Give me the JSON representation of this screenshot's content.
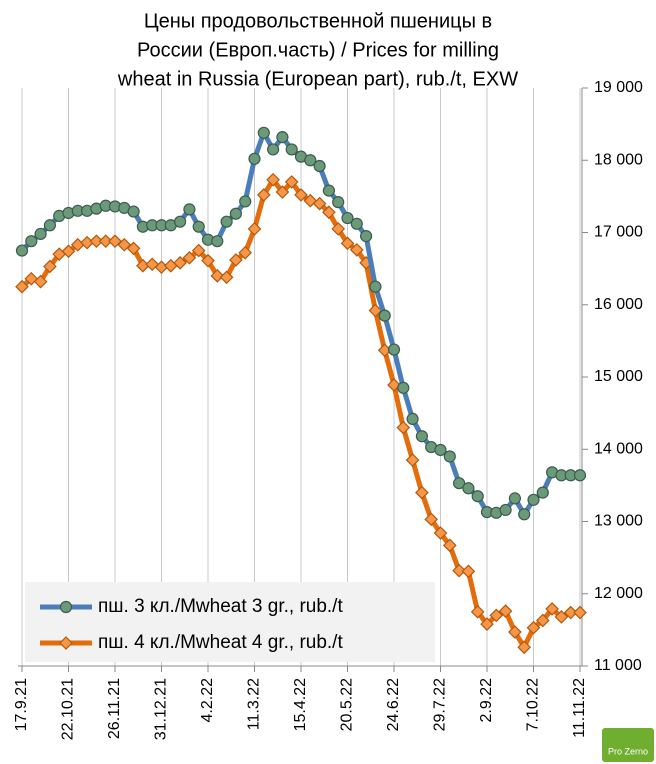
{
  "chart_data": {
    "type": "line",
    "title": [
      "Цены продовольственной пшеницы в",
      "России (Европ.часть) / Prices for milling",
      "wheat in Russia (European part), rub./t, EXW"
    ],
    "categories": [
      "17.9.21",
      null,
      null,
      null,
      null,
      "22.10.21",
      null,
      null,
      null,
      null,
      "26.11.21",
      null,
      null,
      null,
      null,
      "31.12.21",
      null,
      null,
      null,
      null,
      "4.2.22",
      null,
      null,
      null,
      null,
      "11.3.22",
      null,
      null,
      null,
      null,
      "15.4.22",
      null,
      null,
      null,
      null,
      "20.5.22",
      null,
      null,
      null,
      null,
      "24.6.22",
      null,
      null,
      null,
      null,
      "29.7.22",
      null,
      null,
      null,
      null,
      "2.9.22",
      null,
      null,
      null,
      null,
      "7.10.22",
      null,
      null,
      null,
      null,
      "11.11.22"
    ],
    "series": [
      {
        "name": "пш. 3 кл./Mwheat 3 gr., rub./t",
        "color": "#4a7ebb",
        "marker_color": "#6b9a78",
        "marker": "circle",
        "values": [
          16750,
          16880,
          16980,
          17100,
          17230,
          17270,
          17300,
          17300,
          17330,
          17370,
          17360,
          17340,
          17290,
          17080,
          17100,
          17100,
          17100,
          17150,
          17320,
          17080,
          16900,
          16880,
          17150,
          17260,
          17430,
          18020,
          18380,
          18150,
          18320,
          18150,
          18050,
          18000,
          17920,
          17580,
          17420,
          17200,
          17120,
          16950,
          16250,
          15850,
          15380,
          14850,
          14420,
          14180,
          14030,
          13990,
          13900,
          13530,
          13460,
          13350,
          13130,
          13120,
          13160,
          13320,
          13100,
          13300,
          13400,
          13680,
          13640,
          13640,
          13640
        ]
      },
      {
        "name": "пш. 4 кл./Mwheat 4 gr., rub./t",
        "color": "#e46c0a",
        "marker_color": "#f79646",
        "marker": "diamond",
        "values": [
          16250,
          16360,
          16320,
          16530,
          16700,
          16740,
          16830,
          16860,
          16880,
          16880,
          16880,
          16830,
          16780,
          16540,
          16560,
          16520,
          16540,
          16580,
          16650,
          16750,
          16610,
          16400,
          16380,
          16620,
          16720,
          17050,
          17520,
          17730,
          17560,
          17700,
          17520,
          17440,
          17400,
          17280,
          17050,
          16850,
          16760,
          16580,
          15920,
          15370,
          14890,
          14300,
          13850,
          13400,
          13030,
          12840,
          12670,
          12320,
          12310,
          11750,
          11580,
          11700,
          11760,
          11470,
          11260,
          11530,
          11630,
          11790,
          11680,
          11740,
          11740
        ]
      }
    ],
    "ylim": [
      11000,
      19000
    ],
    "yticks": [
      {
        "value": 11000,
        "label": "11 000"
      },
      {
        "value": 12000,
        "label": "12 000"
      },
      {
        "value": 13000,
        "label": "13 000"
      },
      {
        "value": 14000,
        "label": "14 000"
      },
      {
        "value": 15000,
        "label": "15 000"
      },
      {
        "value": 16000,
        "label": "16 000"
      },
      {
        "value": 17000,
        "label": "17 000"
      },
      {
        "value": 18000,
        "label": "18 000"
      },
      {
        "value": 19000,
        "label": "19 000"
      }
    ],
    "axis_side": "right",
    "grid": "x",
    "legend": "lower left",
    "logo": "Pro Zerno"
  }
}
